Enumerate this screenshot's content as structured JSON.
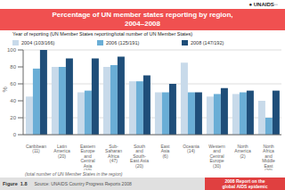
{
  "chart_data": {
    "type": "bar",
    "title": "Percentage of UN member states reporting by region,\n2004–2008",
    "subtitle": "Year of reporting (UN Member States reporting/total number of UN Member States)",
    "ylabel": "%",
    "categories": [
      "Caribbean\n(11)",
      "Latin\nAmerica\n(20)",
      "Eastern\nEurope\nand\nCentral\nAsia\n(19)",
      "Sub-\nSaharan\nAfrica\n(47)",
      "South\nand\nSouth-\nEast Asia\n(20)",
      "East\nAsia\n(6)",
      "Oceania\n(14)",
      "Western\nand\nCentral\nEurope\n(30)",
      "North\nAmerica\n(2)",
      "North\nAfrica\nand\nMiddle\nEast\n(20)"
    ],
    "series": [
      {
        "name": "2004 (103/166)",
        "color": "#c8daea",
        "values": [
          45,
          80,
          50,
          80,
          63,
          50,
          85,
          45,
          48,
          40
        ]
      },
      {
        "name": "2006 (125/191)",
        "color": "#6aaed6",
        "values": [
          78,
          80,
          52,
          82,
          63,
          50,
          50,
          48,
          50,
          20
        ]
      },
      {
        "name": "2008 (147/192)",
        "color": "#1f4e79",
        "values": [
          100,
          90,
          90,
          92,
          70,
          60,
          50,
          55,
          52,
          52
        ]
      }
    ],
    "ylim": [
      0,
      100
    ],
    "yticks": [
      0,
      20,
      40,
      60,
      80,
      100
    ],
    "grid": true,
    "annotations": [
      "● UNAIDS◦◦",
      "(total number of UN Member States in the region)",
      "Figure  1.8",
      "Source: UNAIDS Country Progress Reports 2008",
      "2008 Report on the\nglobal AIDS epidemic"
    ]
  }
}
